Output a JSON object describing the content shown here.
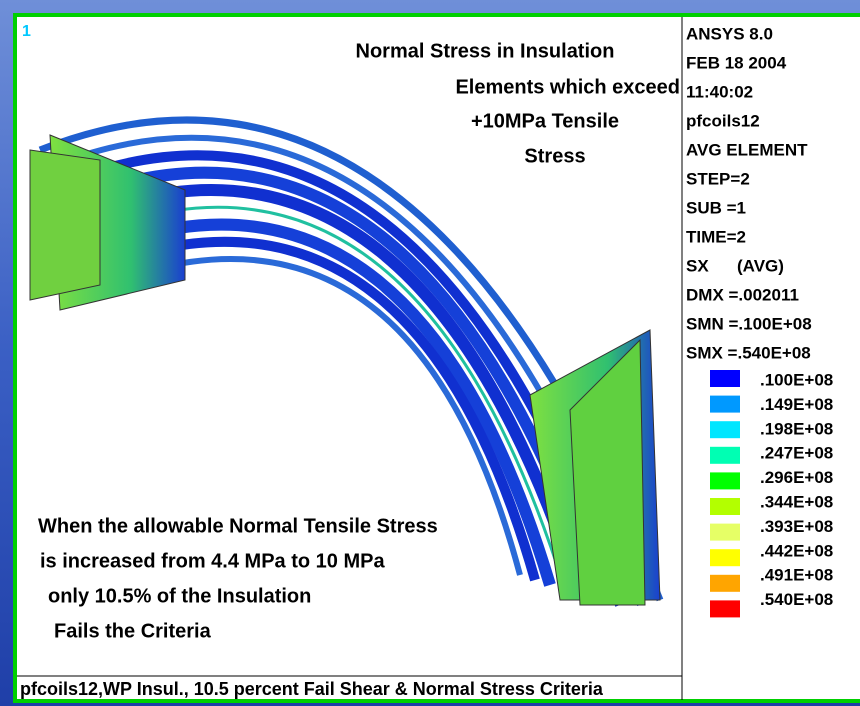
{
  "window_number": "1",
  "title_lines": [
    "Normal Stress in Insulation",
    "Elements which exceed",
    "+10MPa Tensile",
    "Stress"
  ],
  "info_lines": [
    "ANSYS 8.0",
    "FEB 18 2004",
    "11:40:02",
    "pfcoils12",
    "AVG ELEMENT",
    "STEP=2",
    "SUB =1",
    "TIME=2",
    "SX      (AVG)",
    "DMX =.002011",
    "SMN =.100E+08",
    "SMX =.540E+08"
  ],
  "legend": {
    "colors": [
      "#0000ff",
      "#0099ff",
      "#00e6ff",
      "#00ffb3",
      "#00ff00",
      "#b3ff00",
      "#e6ff66",
      "#ffff00",
      "#ffa500",
      "#ff0000"
    ],
    "labels": [
      ".100E+08",
      ".149E+08",
      ".198E+08",
      ".247E+08",
      ".296E+08",
      ".344E+08",
      ".393E+08",
      ".442E+08",
      ".491E+08",
      ".540E+08"
    ]
  },
  "annotation_lines": [
    "When the allowable Normal Tensile Stress",
    "is increased from 4.4 MPa to 10 MPa",
    "only 10.5% of the Insulation",
    "Fails the Criteria"
  ],
  "footer": "pfcoils12,WP Insul., 10.5 percent Fail Shear & Normal Stress Criteria"
}
